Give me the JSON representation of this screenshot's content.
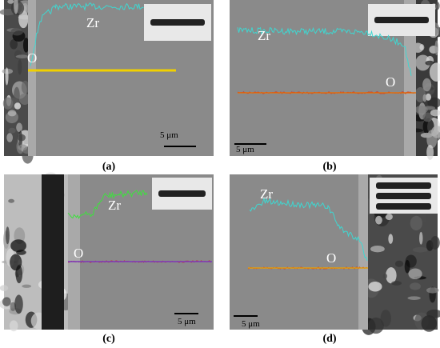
{
  "panels": [
    {
      "caption": "(a)",
      "labels": [
        "Zr",
        "O"
      ],
      "scale_bar": "5 μm"
    },
    {
      "caption": "(b)",
      "labels": [
        "Zr",
        "O"
      ],
      "scale_bar": "5 μm"
    },
    {
      "caption": "(c)",
      "labels": [
        "Zr",
        "O"
      ],
      "scale_bar": "5 μm"
    },
    {
      "caption": "(d)",
      "labels": [
        "Zr",
        "O"
      ],
      "scale_bar": "5 μm"
    }
  ]
}
